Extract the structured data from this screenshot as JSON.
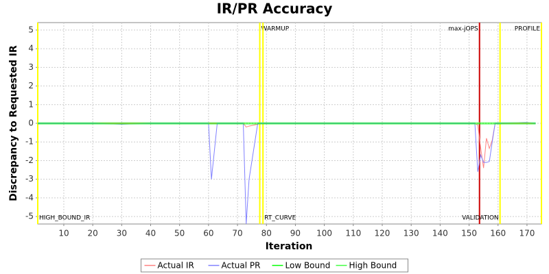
{
  "chart_data": {
    "type": "line",
    "title": "IR/PR Accuracy",
    "x_label": "Iteration",
    "y_label": "Discrepancy to Requested IR",
    "x": [
      1,
      10,
      20,
      30,
      40,
      50,
      60,
      61,
      63,
      72,
      73,
      74,
      77,
      78,
      100,
      152,
      153,
      154,
      155,
      156,
      157,
      158,
      159,
      170,
      173
    ],
    "series": [
      {
        "name": "Actual IR",
        "color": "#ff8080",
        "values": [
          0,
          0,
          0,
          0,
          0,
          0,
          0,
          0,
          0,
          0,
          -0.2,
          -0.15,
          -0.05,
          0,
          0,
          0,
          -0.1,
          -1.3,
          -2.4,
          -0.8,
          -1.35,
          -0.9,
          0,
          0,
          0
        ]
      },
      {
        "name": "Actual PR",
        "color": "#8080ff",
        "values": [
          0,
          0,
          0,
          -0.05,
          0,
          0,
          0,
          -3,
          0,
          0,
          -5.4,
          -3,
          0,
          0,
          0,
          0,
          -2.6,
          -1.7,
          -2.1,
          -2.1,
          -2.05,
          -1,
          0,
          0.05,
          0
        ]
      },
      {
        "name": "Low Bound",
        "color": "#00ff00",
        "values": [
          -0.03,
          -0.03,
          -0.03,
          -0.03,
          -0.03,
          -0.03,
          -0.03,
          -0.03,
          -0.03,
          -0.03,
          -0.03,
          -0.03,
          -0.03,
          -0.03,
          -0.03,
          -0.03,
          -0.03,
          -0.03,
          -0.03,
          -0.03,
          -0.03,
          -0.03,
          -0.03,
          -0.03,
          -0.03
        ]
      },
      {
        "name": "High Bound",
        "color": "#40ff40",
        "values": [
          0.03,
          0.03,
          0.03,
          0.03,
          0.03,
          0.03,
          0.03,
          0.03,
          0.03,
          0.03,
          0.03,
          0.03,
          0.03,
          0.03,
          0.03,
          0.03,
          0.03,
          0.03,
          0.03,
          0.03,
          0.03,
          0.03,
          0.03,
          0.03,
          0.03
        ]
      }
    ],
    "markers": [
      {
        "x": 1,
        "color": "#ffff00",
        "label": "HIGH_BOUND_IR",
        "label_position": "bottom-right"
      },
      {
        "x": 77.7,
        "color": "#ffff00",
        "label": "WARMUP",
        "label_position": "top-right"
      },
      {
        "x": 78.8,
        "color": "#ffff00",
        "label": "RT_CURVE",
        "label_position": "bottom-right"
      },
      {
        "x": 153.6,
        "color": "#cc0000",
        "label": "max-jOPS",
        "label_position": "top-left"
      },
      {
        "x": 160.7,
        "color": "#ffff00",
        "label": "VALIDATION",
        "label_position": "bottom-left"
      },
      {
        "x": 175,
        "color": "#ffff00",
        "label": "PROFILE",
        "label_position": "top-left"
      }
    ],
    "xlim": [
      1,
      175
    ],
    "ylim": [
      -5.4,
      5.4
    ],
    "xticks": [
      10,
      20,
      30,
      40,
      50,
      60,
      70,
      80,
      90,
      100,
      110,
      120,
      130,
      140,
      150,
      160,
      170
    ],
    "yticks": [
      -5,
      -4,
      -3,
      -2,
      -1,
      0,
      1,
      2,
      3,
      4,
      5
    ],
    "grid": true,
    "legend": "bottom"
  }
}
